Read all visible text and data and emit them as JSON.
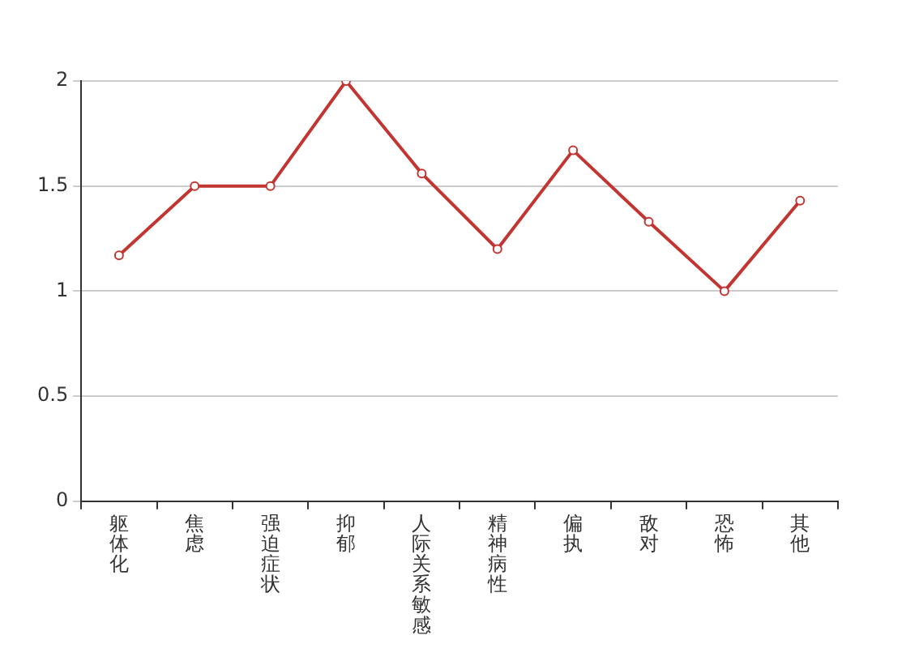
{
  "chart_data": {
    "type": "line",
    "categories": [
      "躯体化",
      "焦虑",
      "强迫症状",
      "抑郁",
      "人际关系敏感",
      "精神病性",
      "偏执",
      "敌对",
      "恐怖",
      "其他"
    ],
    "series": [
      {
        "color": "#c23531",
        "values": [
          1.17,
          1.5,
          1.5,
          2,
          1.56,
          1.2,
          1.67,
          1.33,
          1,
          1.43
        ]
      }
    ],
    "ylim": [
      0,
      2
    ],
    "yticks": [
      0,
      0.5,
      1,
      1.5,
      2
    ],
    "grid": "y",
    "legend": false,
    "marker": "circle",
    "line_style": "solid"
  }
}
